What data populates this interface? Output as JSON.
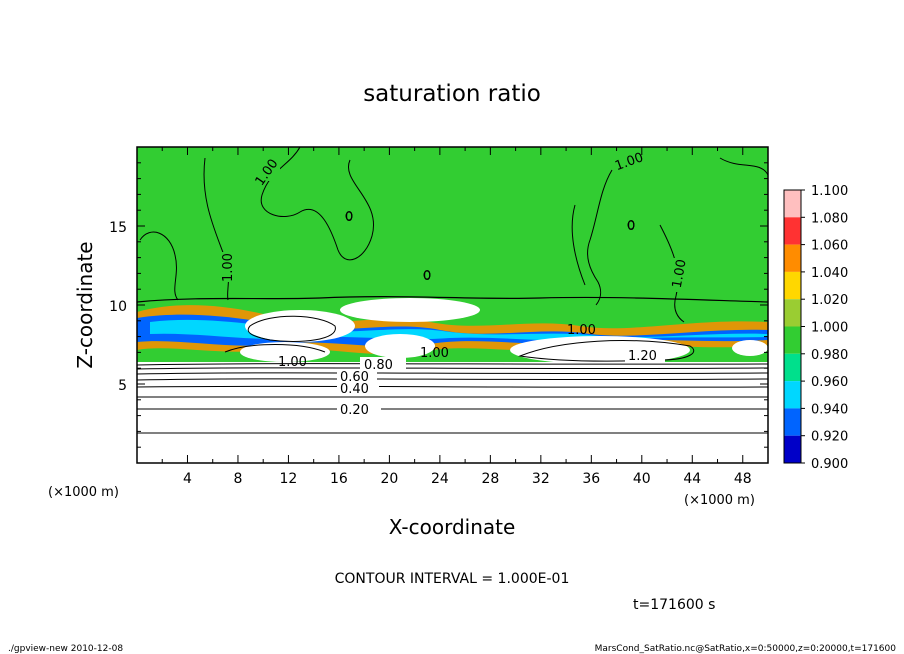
{
  "chart_data": {
    "type": "heatmap",
    "title": "saturation ratio",
    "xlabel": "X-coordinate",
    "ylabel": "Z-coordinate",
    "x_unit": "(×1000 m)",
    "y_unit": "(×1000 m)",
    "xlim": [
      0,
      50
    ],
    "ylim": [
      0,
      20
    ],
    "x_ticks": [
      "4",
      "8",
      "12",
      "16",
      "20",
      "24",
      "28",
      "32",
      "36",
      "40",
      "44",
      "48"
    ],
    "y_ticks": [
      "5",
      "10",
      "15"
    ],
    "colorbar": {
      "labels": [
        "1.100",
        "1.080",
        "1.060",
        "1.040",
        "1.020",
        "1.000",
        "0.980",
        "0.960",
        "0.940",
        "0.920",
        "0.900"
      ],
      "colors": [
        "#ffbfbf",
        "#ff3232",
        "#ff8c00",
        "#ffd700",
        "#9acd32",
        "#32cd32",
        "#00e08c",
        "#00d7ff",
        "#0064ff",
        "#0000c8",
        "#7800b4"
      ],
      "placement": "right"
    },
    "contour_labels": [
      "1.00",
      "1.00",
      "1.00",
      "1.00",
      "1.00",
      "1.00",
      "0",
      "0",
      "0",
      "1.20",
      "0.80",
      "0.60",
      "0.40",
      "0.20",
      "1.00"
    ],
    "contour_interval": "CONTOUR INTERVAL = 1.000E-01",
    "time": "t=171600 s"
  },
  "footer": {
    "left": "./gpview-new   2010-12-08",
    "right": "MarsCond_SatRatio.nc@SatRatio,x=0:50000,z=0:20000,t=171600"
  }
}
